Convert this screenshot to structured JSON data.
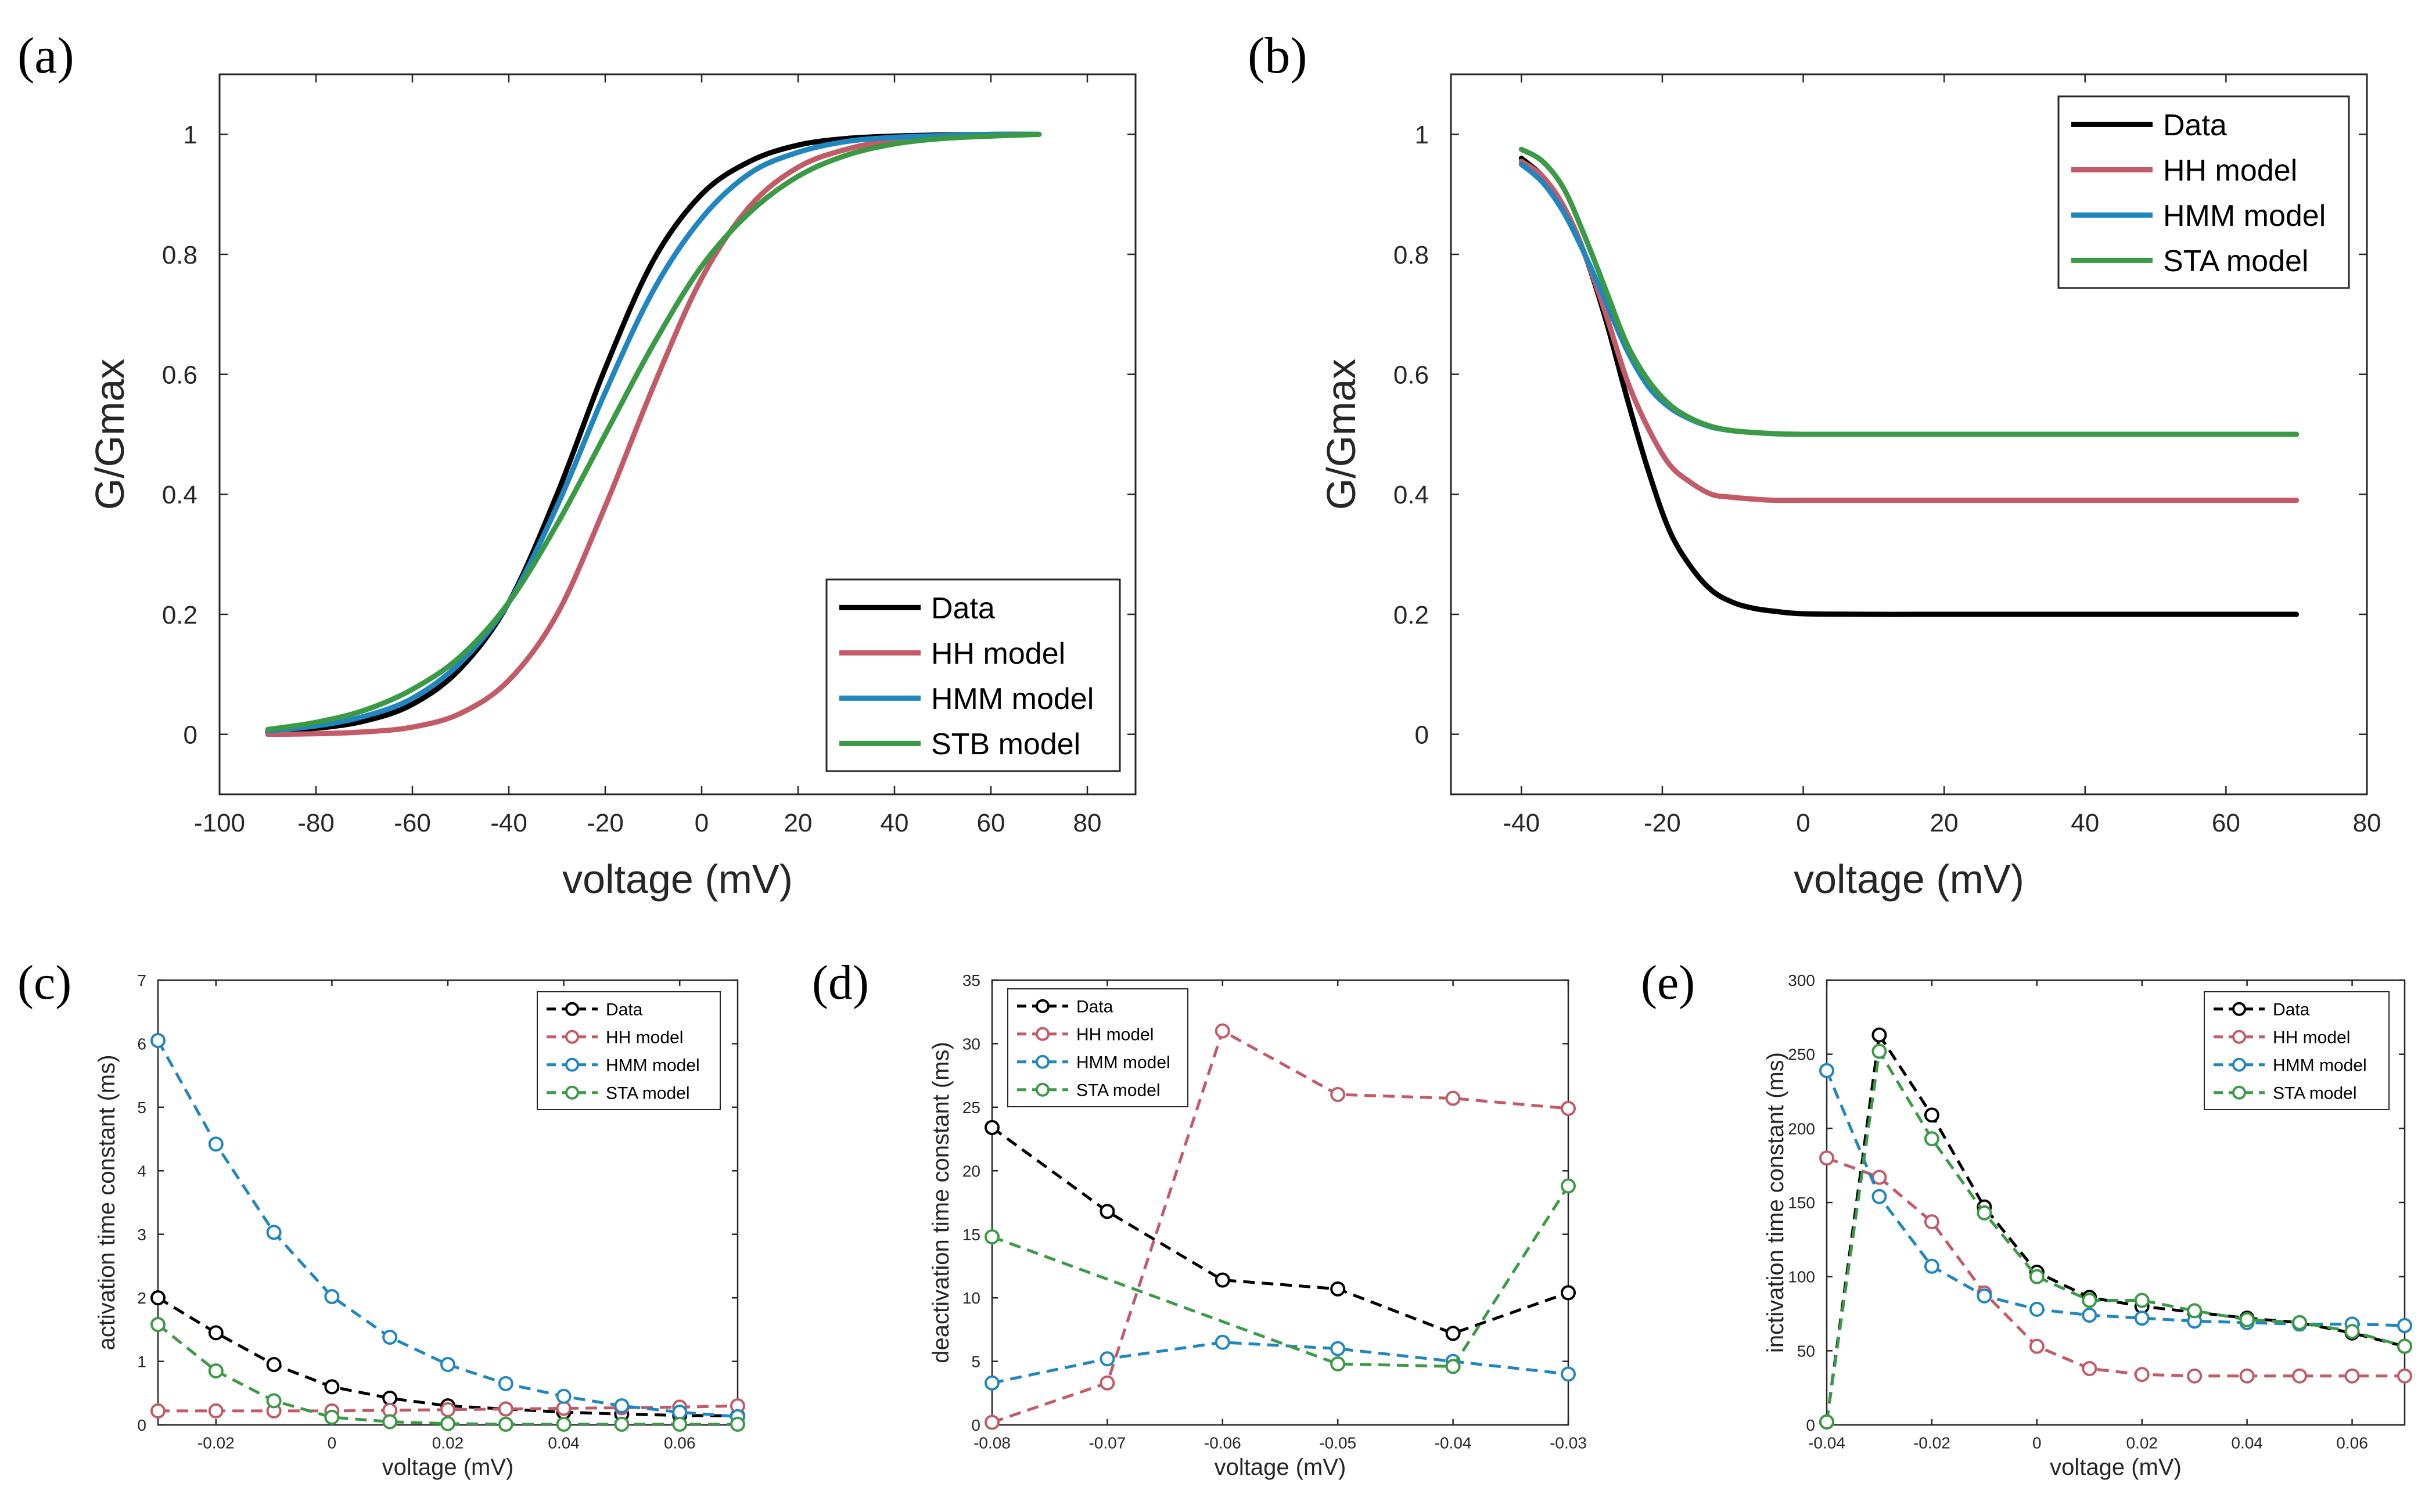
{
  "colors": {
    "data": "#000000",
    "hh": "#c25b67",
    "hmm": "#1f86c0",
    "sta": "#3b9a45"
  },
  "chart_data": [
    {
      "id": "a",
      "panel_label": "(a)",
      "type": "line",
      "xlabel": "voltage (mV)",
      "ylabel": "G/Gmax",
      "xlim": [
        -100,
        90
      ],
      "ylim": [
        -0.1,
        1.1
      ],
      "xticks": [
        -100,
        -80,
        -60,
        -40,
        -20,
        0,
        20,
        40,
        60,
        80
      ],
      "yticks": [
        0,
        0.2,
        0.4,
        0.6,
        0.8,
        1
      ],
      "legend_position": "bottom-right",
      "series": [
        {
          "name": "Data",
          "color_key": "data",
          "x": [
            -90,
            -80,
            -70,
            -60,
            -50,
            -40,
            -30,
            -20,
            -10,
            0,
            10,
            20,
            30,
            40,
            50,
            60,
            70
          ],
          "values": [
            0.004,
            0.01,
            0.022,
            0.05,
            0.11,
            0.22,
            0.4,
            0.61,
            0.79,
            0.9,
            0.955,
            0.982,
            0.993,
            0.997,
            0.999,
            1.0,
            1.0
          ]
        },
        {
          "name": "HH model",
          "color_key": "hh",
          "x": [
            -90,
            -80,
            -70,
            -60,
            -50,
            -40,
            -30,
            -20,
            -10,
            0,
            10,
            20,
            30,
            40,
            50,
            60,
            70
          ],
          "values": [
            0.0,
            0.001,
            0.004,
            0.012,
            0.035,
            0.09,
            0.2,
            0.38,
            0.58,
            0.76,
            0.88,
            0.945,
            0.975,
            0.99,
            0.996,
            0.999,
            1.0
          ]
        },
        {
          "name": "HMM model",
          "color_key": "hmm",
          "x": [
            -90,
            -80,
            -70,
            -60,
            -50,
            -40,
            -30,
            -20,
            -10,
            0,
            10,
            20,
            30,
            40,
            50,
            60,
            70
          ],
          "values": [
            0.006,
            0.014,
            0.03,
            0.06,
            0.12,
            0.22,
            0.38,
            0.57,
            0.74,
            0.86,
            0.935,
            0.97,
            0.988,
            0.995,
            0.998,
            1.0,
            1.0
          ]
        },
        {
          "name": "STB model",
          "color_key": "sta",
          "x": [
            -90,
            -80,
            -70,
            -60,
            -50,
            -40,
            -30,
            -20,
            -10,
            0,
            10,
            20,
            30,
            40,
            50,
            60,
            70
          ],
          "values": [
            0.008,
            0.02,
            0.04,
            0.075,
            0.13,
            0.22,
            0.35,
            0.5,
            0.65,
            0.78,
            0.87,
            0.93,
            0.965,
            0.984,
            0.993,
            0.997,
            1.0
          ]
        }
      ]
    },
    {
      "id": "b",
      "panel_label": "(b)",
      "type": "line",
      "xlabel": "voltage (mV)",
      "ylabel": "G/Gmax",
      "xlim": [
        -50,
        80
      ],
      "ylim": [
        -0.1,
        1.1
      ],
      "xticks": [
        -40,
        -20,
        0,
        20,
        40,
        60,
        80
      ],
      "yticks": [
        0,
        0.2,
        0.4,
        0.6,
        0.8,
        1
      ],
      "legend_position": "top-right",
      "series": [
        {
          "name": "Data",
          "color_key": "data",
          "x": [
            -40,
            -37,
            -34,
            -31,
            -28,
            -25,
            -22,
            -19,
            -16,
            -13,
            -10,
            -7,
            -4,
            0,
            10,
            20,
            30,
            40,
            50,
            60,
            70
          ],
          "values": [
            0.96,
            0.93,
            0.88,
            0.8,
            0.69,
            0.56,
            0.44,
            0.34,
            0.28,
            0.24,
            0.22,
            0.21,
            0.205,
            0.201,
            0.2,
            0.2,
            0.2,
            0.2,
            0.2,
            0.2,
            0.2
          ]
        },
        {
          "name": "HH model",
          "color_key": "hh",
          "x": [
            -40,
            -37,
            -34,
            -31,
            -28,
            -25,
            -22,
            -19,
            -16,
            -13,
            -10,
            -7,
            -4,
            0,
            10,
            20,
            30,
            40,
            50,
            60,
            70
          ],
          "values": [
            0.955,
            0.93,
            0.88,
            0.8,
            0.7,
            0.59,
            0.51,
            0.45,
            0.42,
            0.4,
            0.395,
            0.392,
            0.39,
            0.39,
            0.39,
            0.39,
            0.39,
            0.39,
            0.39,
            0.39,
            0.39
          ]
        },
        {
          "name": "HMM model",
          "color_key": "hmm",
          "x": [
            -40,
            -37,
            -34,
            -31,
            -28,
            -25,
            -22,
            -19,
            -16,
            -13,
            -10,
            -7,
            -4,
            0,
            10,
            20,
            30,
            40,
            50,
            60,
            70
          ],
          "values": [
            0.95,
            0.92,
            0.87,
            0.8,
            0.72,
            0.64,
            0.58,
            0.545,
            0.525,
            0.512,
            0.506,
            0.503,
            0.501,
            0.5,
            0.5,
            0.5,
            0.5,
            0.5,
            0.5,
            0.5,
            0.5
          ]
        },
        {
          "name": "STA model",
          "color_key": "sta",
          "x": [
            -40,
            -37,
            -34,
            -31,
            -28,
            -25,
            -22,
            -19,
            -16,
            -13,
            -10,
            -7,
            -4,
            0,
            10,
            20,
            30,
            40,
            50,
            60,
            70
          ],
          "values": [
            0.975,
            0.955,
            0.91,
            0.83,
            0.74,
            0.65,
            0.59,
            0.55,
            0.527,
            0.513,
            0.506,
            0.503,
            0.501,
            0.5,
            0.5,
            0.5,
            0.5,
            0.5,
            0.5,
            0.5,
            0.5
          ]
        }
      ]
    },
    {
      "id": "c",
      "panel_label": "(c)",
      "type": "line",
      "xlabel": "voltage (mV)",
      "ylabel": "activation time constant (ms)",
      "xlim": [
        -0.03,
        0.07
      ],
      "ylim": [
        0,
        7
      ],
      "xticks": [
        -0.02,
        0,
        0.02,
        0.04,
        0.06
      ],
      "yticks": [
        0,
        1,
        2,
        3,
        4,
        5,
        6,
        7
      ],
      "legend_position": "top-right",
      "series": [
        {
          "name": "Data",
          "color_key": "data",
          "x": [
            -0.03,
            -0.02,
            -0.01,
            0,
            0.01,
            0.02,
            0.03,
            0.04,
            0.05,
            0.06,
            0.07
          ],
          "values": [
            2.0,
            1.45,
            0.95,
            0.6,
            0.42,
            0.3,
            0.25,
            0.2,
            0.17,
            0.15,
            0.14
          ]
        },
        {
          "name": "HH model",
          "color_key": "hh",
          "x": [
            -0.03,
            -0.02,
            -0.01,
            0,
            0.01,
            0.02,
            0.03,
            0.04,
            0.05,
            0.06,
            0.07
          ],
          "values": [
            0.22,
            0.22,
            0.22,
            0.22,
            0.23,
            0.24,
            0.25,
            0.26,
            0.27,
            0.28,
            0.3
          ]
        },
        {
          "name": "HMM model",
          "color_key": "hmm",
          "x": [
            -0.03,
            -0.02,
            -0.01,
            0,
            0.01,
            0.02,
            0.03,
            0.04,
            0.05,
            0.06,
            0.07
          ],
          "values": [
            6.05,
            4.42,
            3.03,
            2.02,
            1.38,
            0.95,
            0.65,
            0.45,
            0.3,
            0.2,
            0.13
          ]
        },
        {
          "name": "STA model",
          "color_key": "sta",
          "x": [
            -0.03,
            -0.02,
            -0.01,
            0,
            0.01,
            0.02,
            0.03,
            0.04,
            0.05,
            0.06,
            0.07
          ],
          "values": [
            1.58,
            0.85,
            0.38,
            0.12,
            0.05,
            0.02,
            0.01,
            0.01,
            0.01,
            0.01,
            0.01
          ]
        }
      ]
    },
    {
      "id": "d",
      "panel_label": "(d)",
      "type": "line",
      "xlabel": "voltage (mV)",
      "ylabel": "deactivation time constant (ms)",
      "xlim": [
        -0.08,
        -0.03
      ],
      "ylim": [
        0,
        35
      ],
      "xticks": [
        -0.08,
        -0.07,
        -0.06,
        -0.05,
        -0.04,
        -0.03
      ],
      "yticks": [
        0,
        5,
        10,
        15,
        20,
        25,
        30,
        35
      ],
      "legend_position": "top-left",
      "series": [
        {
          "name": "Data",
          "color_key": "data",
          "x": [
            -0.08,
            -0.07,
            -0.06,
            -0.05,
            -0.04,
            -0.03
          ],
          "values": [
            23.4,
            16.8,
            11.4,
            10.7,
            7.2,
            10.4
          ]
        },
        {
          "name": "HH model",
          "color_key": "hh",
          "x": [
            -0.08,
            -0.07,
            -0.06,
            -0.05,
            -0.04,
            -0.03
          ],
          "values": [
            0.2,
            3.3,
            31.0,
            26.0,
            25.7,
            24.9
          ]
        },
        {
          "name": "HMM model",
          "color_key": "hmm",
          "x": [
            -0.08,
            -0.07,
            -0.06,
            -0.05,
            -0.04,
            -0.03
          ],
          "values": [
            3.3,
            5.2,
            6.5,
            6.0,
            5.0,
            4.0
          ]
        },
        {
          "name": "STA model",
          "color_key": "sta",
          "x": [
            -0.08,
            -0.05,
            -0.04,
            -0.03
          ],
          "values": [
            14.8,
            4.8,
            4.6,
            18.8
          ]
        }
      ]
    },
    {
      "id": "e",
      "panel_label": "(e)",
      "type": "line",
      "xlabel": "voltage (mV)",
      "ylabel": "inctivation time constant (ms)",
      "xlim": [
        -0.04,
        0.07
      ],
      "ylim": [
        0,
        300
      ],
      "xticks": [
        -0.04,
        -0.02,
        0,
        0.02,
        0.04,
        0.06
      ],
      "yticks": [
        0,
        50,
        100,
        150,
        200,
        250,
        300
      ],
      "legend_position": "top-right",
      "series": [
        {
          "name": "Data",
          "color_key": "data",
          "x": [
            -0.04,
            -0.03,
            -0.02,
            -0.01,
            0,
            0.01,
            0.02,
            0.03,
            0.04,
            0.05,
            0.06,
            0.07
          ],
          "values": [
            2,
            263,
            209,
            147,
            103,
            86,
            80,
            76,
            72,
            69,
            62,
            53
          ]
        },
        {
          "name": "HH model",
          "color_key": "hh",
          "x": [
            -0.04,
            -0.03,
            -0.02,
            -0.01,
            0,
            0.01,
            0.02,
            0.03,
            0.04,
            0.05,
            0.06,
            0.07
          ],
          "values": [
            180,
            167,
            137,
            89,
            53,
            38,
            34,
            33,
            33,
            33,
            33,
            33
          ]
        },
        {
          "name": "HMM model",
          "color_key": "hmm",
          "x": [
            -0.04,
            -0.03,
            -0.02,
            -0.01,
            0,
            0.01,
            0.02,
            0.03,
            0.04,
            0.05,
            0.06,
            0.07
          ],
          "values": [
            239,
            154,
            107,
            87,
            78,
            74,
            72,
            70,
            69,
            68,
            68,
            67
          ]
        },
        {
          "name": "STA model",
          "color_key": "sta",
          "x": [
            -0.04,
            -0.03,
            -0.02,
            -0.01,
            0,
            0.01,
            0.02,
            0.03,
            0.04,
            0.05,
            0.06,
            0.07
          ],
          "values": [
            2,
            252,
            193,
            143,
            100,
            84,
            84,
            77,
            71,
            69,
            63,
            53
          ]
        }
      ]
    }
  ]
}
